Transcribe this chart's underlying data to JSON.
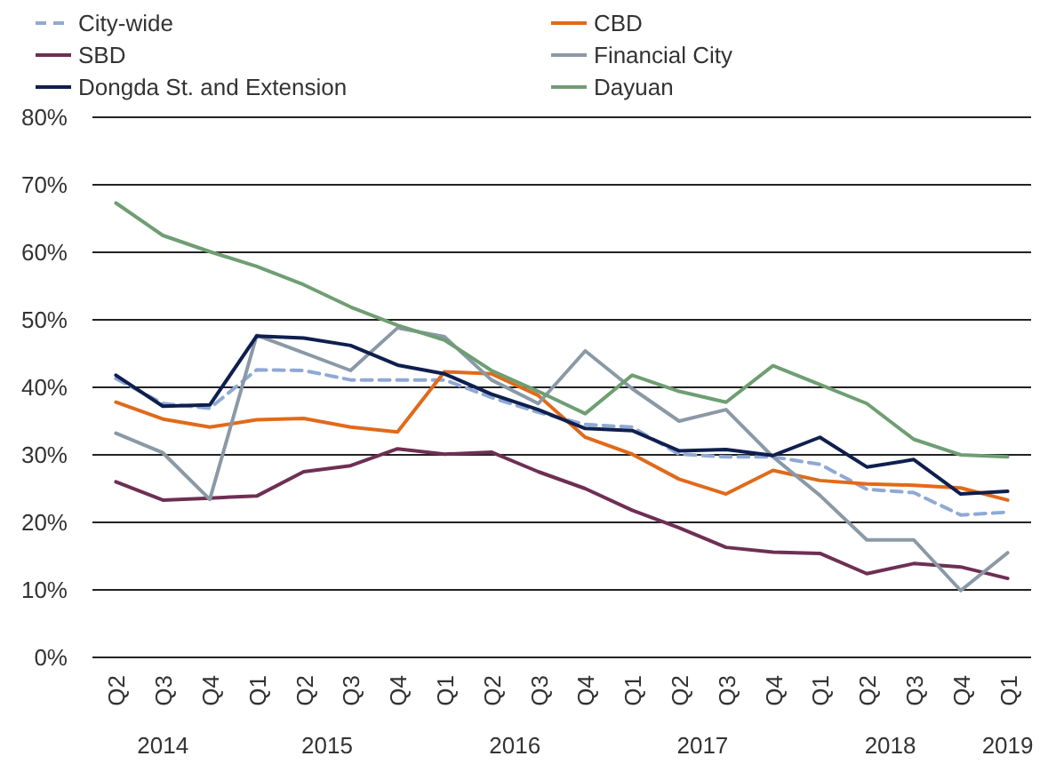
{
  "chart_data": {
    "type": "line",
    "categories": [
      "Q2",
      "Q3",
      "Q4",
      "Q1",
      "Q2",
      "Q3",
      "Q4",
      "Q1",
      "Q2",
      "Q3",
      "Q4",
      "Q1",
      "Q2",
      "Q3",
      "Q4",
      "Q1",
      "Q2",
      "Q3",
      "Q4",
      "Q1"
    ],
    "annotations": [
      "2014",
      "2015",
      "2016",
      "2017",
      "2018",
      "2019"
    ],
    "ylim": [
      0,
      80
    ],
    "yticks": [
      {
        "value": 0,
        "label": "0%"
      },
      {
        "value": 10,
        "label": "10%"
      },
      {
        "value": 20,
        "label": "20%"
      },
      {
        "value": 30,
        "label": "30%"
      },
      {
        "value": 40,
        "label": "40%"
      },
      {
        "value": 50,
        "label": "50%"
      },
      {
        "value": 60,
        "label": "60%"
      },
      {
        "value": 70,
        "label": "70%"
      },
      {
        "value": 80,
        "label": "80%"
      }
    ],
    "grid": "y",
    "legend": "top",
    "line_style": "solid",
    "series": [
      {
        "name": "City-wide",
        "color": "#8fa9d6",
        "line_style": "dashed",
        "values": [
          41.3,
          37.6,
          36.9,
          42.6,
          42.5,
          41.1,
          41.1,
          41.1,
          38.5,
          36.3,
          34.5,
          34.1,
          30.1,
          29.7,
          29.7,
          28.6,
          24.9,
          24.4,
          21.1,
          21.5
        ]
      },
      {
        "name": "CBD",
        "color": "#e06a1b",
        "values": [
          37.8,
          35.3,
          34.1,
          35.2,
          35.4,
          34.1,
          33.4,
          42.3,
          42.0,
          38.8,
          32.6,
          30.1,
          26.4,
          24.2,
          27.7,
          26.2,
          25.7,
          25.5,
          25.1,
          23.3
        ]
      },
      {
        "name": "SBD",
        "color": "#6e2f54",
        "values": [
          26.0,
          23.3,
          23.6,
          23.9,
          27.5,
          28.4,
          30.9,
          30.1,
          30.4,
          27.5,
          25.0,
          21.8,
          19.2,
          16.3,
          15.6,
          15.4,
          12.4,
          13.9,
          13.4,
          11.7
        ]
      },
      {
        "name": "Financial City",
        "color": "#8a99a6",
        "values": [
          33.2,
          30.3,
          23.4,
          47.7,
          45.1,
          42.5,
          48.8,
          47.5,
          41.1,
          37.6,
          45.4,
          39.8,
          35.0,
          36.7,
          29.7,
          24.0,
          17.4,
          17.4,
          9.9,
          15.5
        ]
      },
      {
        "name": "Dongda St. and Extension",
        "color": "#0e1f4f",
        "values": [
          41.8,
          37.2,
          37.4,
          47.6,
          47.3,
          46.2,
          43.3,
          42.0,
          39.0,
          36.7,
          33.9,
          33.6,
          30.6,
          30.8,
          29.9,
          32.6,
          28.2,
          29.3,
          24.2,
          24.6
        ]
      },
      {
        "name": "Dayuan",
        "color": "#6f9e73",
        "values": [
          67.3,
          62.5,
          60.1,
          57.9,
          55.2,
          51.9,
          49.2,
          47.0,
          42.5,
          39.4,
          36.1,
          41.8,
          39.4,
          37.8,
          43.2,
          40.4,
          37.6,
          32.3,
          30.0,
          29.7
        ]
      }
    ]
  }
}
